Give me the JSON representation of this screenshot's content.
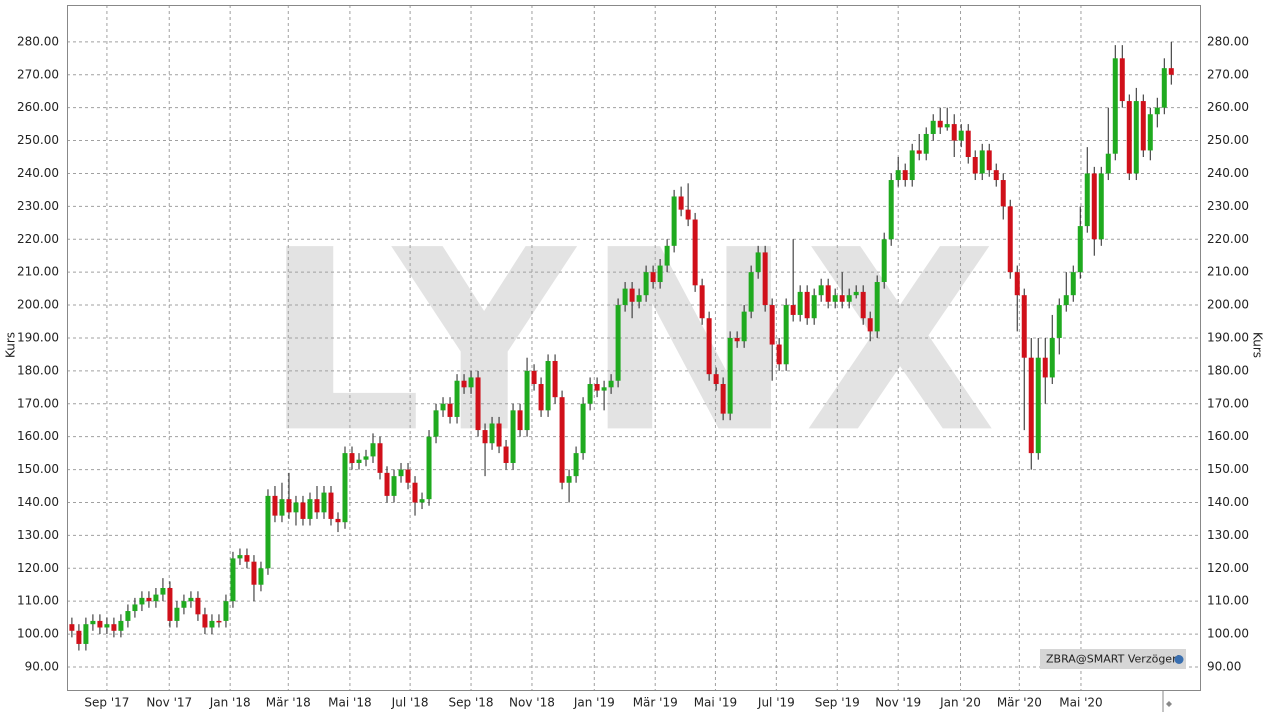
{
  "chart_data": {
    "type": "candlestick",
    "watermark": "LYNX",
    "instrument_label": "ZBRA@SMART Verzögert",
    "y_label": "Kurs",
    "up_color": "#1faa1f",
    "down_color": "#d0101a",
    "grid": true,
    "ylim": [
      83,
      291.2
    ],
    "yticks": [
      {
        "value": 90,
        "label": "90.00"
      },
      {
        "value": 100,
        "label": "100.00"
      },
      {
        "value": 110,
        "label": "110.00"
      },
      {
        "value": 120,
        "label": "120.00"
      },
      {
        "value": 130,
        "label": "130.00"
      },
      {
        "value": 140,
        "label": "140.00"
      },
      {
        "value": 150,
        "label": "150.00"
      },
      {
        "value": 160,
        "label": "160.00"
      },
      {
        "value": 170,
        "label": "170.00"
      },
      {
        "value": 180,
        "label": "180.00"
      },
      {
        "value": 190,
        "label": "190.00"
      },
      {
        "value": 200,
        "label": "200.00"
      },
      {
        "value": 210,
        "label": "210.00"
      },
      {
        "value": 220,
        "label": "220.00"
      },
      {
        "value": 230,
        "label": "230.00"
      },
      {
        "value": 240,
        "label": "240.00"
      },
      {
        "value": 250,
        "label": "250.00"
      },
      {
        "value": 260,
        "label": "260.00"
      },
      {
        "value": 270,
        "label": "270.00"
      },
      {
        "value": 280,
        "label": "280.00"
      }
    ],
    "xlim": [
      -0.7,
      161.1
    ],
    "xticks": [
      {
        "value": 5,
        "label": "Sep '17"
      },
      {
        "value": 13.9,
        "label": "Nov '17"
      },
      {
        "value": 22.6,
        "label": "Jan '18"
      },
      {
        "value": 30.9,
        "label": "Mär '18"
      },
      {
        "value": 39.7,
        "label": "Mai '18"
      },
      {
        "value": 48.3,
        "label": "Jul '18"
      },
      {
        "value": 57,
        "label": "Sep '18"
      },
      {
        "value": 65.7,
        "label": "Nov '18"
      },
      {
        "value": 74.6,
        "label": "Jan '19"
      },
      {
        "value": 83.3,
        "label": "Mär '19"
      },
      {
        "value": 91.9,
        "label": "Mai '19"
      },
      {
        "value": 100.6,
        "label": "Jul '19"
      },
      {
        "value": 109.3,
        "label": "Sep '19"
      },
      {
        "value": 118,
        "label": "Nov '19"
      },
      {
        "value": 126.9,
        "label": "Jan '20"
      },
      {
        "value": 135.3,
        "label": "Mär '20"
      },
      {
        "value": 144.1,
        "label": "Mai '20"
      }
    ],
    "ohlc": [
      [
        103,
        105,
        99,
        101
      ],
      [
        101,
        103,
        95,
        97
      ],
      [
        97,
        105,
        95,
        103
      ],
      [
        103,
        106,
        101,
        104
      ],
      [
        104,
        106,
        100,
        102
      ],
      [
        102,
        105,
        100,
        103
      ],
      [
        103,
        105,
        99,
        101
      ],
      [
        101,
        106,
        99,
        104
      ],
      [
        104,
        109,
        102,
        107
      ],
      [
        107,
        111,
        105,
        109
      ],
      [
        109,
        113,
        107,
        111
      ],
      [
        111,
        113,
        108,
        110
      ],
      [
        110,
        114,
        108,
        112
      ],
      [
        112,
        117,
        110,
        114
      ],
      [
        114,
        116,
        102,
        104
      ],
      [
        104,
        110,
        102,
        108
      ],
      [
        108,
        112,
        106,
        110
      ],
      [
        110,
        113,
        108,
        111
      ],
      [
        111,
        113,
        104,
        106
      ],
      [
        106,
        108,
        100,
        102
      ],
      [
        102,
        106,
        100,
        104
      ],
      [
        104,
        106,
        102,
        104
      ],
      [
        104,
        112,
        102,
        110
      ],
      [
        110,
        125,
        108,
        123
      ],
      [
        123,
        126,
        121,
        124
      ],
      [
        124,
        126,
        120,
        122
      ],
      [
        122,
        124,
        110,
        115
      ],
      [
        115,
        122,
        113,
        120
      ],
      [
        120,
        144,
        118,
        142
      ],
      [
        142,
        145,
        134,
        136
      ],
      [
        136,
        146,
        134,
        141
      ],
      [
        141,
        149,
        135,
        137
      ],
      [
        137,
        142,
        133,
        140
      ],
      [
        140,
        142,
        133,
        135
      ],
      [
        135,
        143,
        133,
        141
      ],
      [
        141,
        145,
        135,
        137
      ],
      [
        137,
        145,
        135,
        143
      ],
      [
        143,
        145,
        133,
        135
      ],
      [
        135,
        137,
        131,
        134
      ],
      [
        134,
        157,
        132,
        155
      ],
      [
        155,
        157,
        150,
        152
      ],
      [
        152,
        155,
        150,
        153
      ],
      [
        153,
        156,
        151,
        154
      ],
      [
        154,
        161,
        152,
        158
      ],
      [
        158,
        160,
        147,
        149
      ],
      [
        149,
        151,
        140,
        142
      ],
      [
        142,
        150,
        140,
        148
      ],
      [
        148,
        152,
        146,
        150
      ],
      [
        150,
        152,
        144,
        146
      ],
      [
        146,
        148,
        136,
        140
      ],
      [
        140,
        143,
        138,
        141
      ],
      [
        141,
        162,
        139,
        160
      ],
      [
        160,
        170,
        158,
        168
      ],
      [
        168,
        172,
        166,
        170
      ],
      [
        170,
        172,
        164,
        166
      ],
      [
        166,
        179,
        164,
        177
      ],
      [
        177,
        179,
        173,
        175
      ],
      [
        175,
        180,
        173,
        178
      ],
      [
        178,
        180,
        160,
        162
      ],
      [
        162,
        164,
        148,
        158
      ],
      [
        158,
        166,
        156,
        164
      ],
      [
        164,
        166,
        155,
        157
      ],
      [
        157,
        159,
        150,
        152
      ],
      [
        152,
        170,
        150,
        168
      ],
      [
        168,
        170,
        160,
        162
      ],
      [
        162,
        184,
        160,
        180
      ],
      [
        180,
        182,
        174,
        176
      ],
      [
        176,
        178,
        166,
        168
      ],
      [
        168,
        185,
        166,
        183
      ],
      [
        183,
        185,
        170,
        172
      ],
      [
        172,
        174,
        144,
        146
      ],
      [
        146,
        150,
        140,
        148
      ],
      [
        148,
        157,
        146,
        155
      ],
      [
        155,
        172,
        153,
        170
      ],
      [
        170,
        178,
        168,
        176
      ],
      [
        176,
        178,
        172,
        174
      ],
      [
        174,
        177,
        168,
        175
      ],
      [
        175,
        179,
        173,
        177
      ],
      [
        177,
        202,
        175,
        200
      ],
      [
        200,
        207,
        198,
        205
      ],
      [
        205,
        207,
        196,
        201
      ],
      [
        201,
        205,
        199,
        203
      ],
      [
        203,
        212,
        201,
        210
      ],
      [
        210,
        212,
        205,
        207
      ],
      [
        207,
        214,
        205,
        212
      ],
      [
        212,
        220,
        210,
        218
      ],
      [
        218,
        235,
        216,
        233
      ],
      [
        233,
        236,
        227,
        229
      ],
      [
        229,
        237,
        224,
        226
      ],
      [
        226,
        228,
        204,
        206
      ],
      [
        206,
        208,
        194,
        196
      ],
      [
        196,
        198,
        177,
        179
      ],
      [
        179,
        181,
        174,
        176
      ],
      [
        176,
        178,
        165,
        167
      ],
      [
        167,
        192,
        165,
        190
      ],
      [
        190,
        192,
        187,
        189
      ],
      [
        189,
        200,
        187,
        198
      ],
      [
        198,
        212,
        196,
        210
      ],
      [
        210,
        218,
        208,
        216
      ],
      [
        216,
        218,
        198,
        200
      ],
      [
        200,
        202,
        177,
        188
      ],
      [
        188,
        190,
        180,
        182
      ],
      [
        182,
        202,
        180,
        200
      ],
      [
        200,
        220,
        195,
        197
      ],
      [
        197,
        206,
        195,
        204
      ],
      [
        204,
        206,
        194,
        196
      ],
      [
        196,
        205,
        194,
        203
      ],
      [
        203,
        208,
        201,
        206
      ],
      [
        206,
        208,
        199,
        201
      ],
      [
        201,
        205,
        199,
        203
      ],
      [
        203,
        210,
        199,
        201
      ],
      [
        201,
        205,
        199,
        203
      ],
      [
        203,
        206,
        202,
        204
      ],
      [
        204,
        206,
        194,
        196
      ],
      [
        196,
        198,
        189,
        192
      ],
      [
        192,
        209,
        190,
        207
      ],
      [
        207,
        222,
        205,
        220
      ],
      [
        220,
        240,
        218,
        238
      ],
      [
        238,
        245,
        236,
        241
      ],
      [
        241,
        243,
        236,
        238
      ],
      [
        238,
        249,
        236,
        247
      ],
      [
        247,
        252,
        244,
        246
      ],
      [
        246,
        254,
        244,
        252
      ],
      [
        252,
        258,
        250,
        256
      ],
      [
        256,
        260,
        252,
        254
      ],
      [
        254,
        260,
        253,
        255
      ],
      [
        255,
        258,
        245,
        250
      ],
      [
        250,
        255,
        248,
        253
      ],
      [
        253,
        255,
        243,
        245
      ],
      [
        245,
        247,
        238,
        240
      ],
      [
        240,
        249,
        238,
        247
      ],
      [
        247,
        249,
        239,
        241
      ],
      [
        241,
        243,
        236,
        238
      ],
      [
        238,
        240,
        226,
        230
      ],
      [
        230,
        232,
        208,
        210
      ],
      [
        210,
        212,
        192,
        203
      ],
      [
        203,
        205,
        162,
        184
      ],
      [
        184,
        190,
        150,
        155
      ],
      [
        155,
        190,
        153,
        184
      ],
      [
        184,
        190,
        170,
        178
      ],
      [
        178,
        197,
        176,
        190
      ],
      [
        190,
        202,
        185,
        200
      ],
      [
        200,
        210,
        198,
        203
      ],
      [
        203,
        212,
        201,
        210
      ],
      [
        210,
        230,
        208,
        224
      ],
      [
        224,
        248,
        222,
        240
      ],
      [
        240,
        242,
        215,
        220
      ],
      [
        220,
        242,
        218,
        240
      ],
      [
        240,
        260,
        238,
        246
      ],
      [
        246,
        279,
        244,
        275
      ],
      [
        275,
        279,
        260,
        262
      ],
      [
        262,
        264,
        238,
        240
      ],
      [
        240,
        266,
        238,
        262
      ],
      [
        262,
        264,
        245,
        247
      ],
      [
        247,
        260,
        244,
        258
      ],
      [
        258,
        263,
        254,
        260
      ],
      [
        260,
        275,
        258,
        272
      ],
      [
        272,
        280,
        267,
        270
      ]
    ]
  }
}
